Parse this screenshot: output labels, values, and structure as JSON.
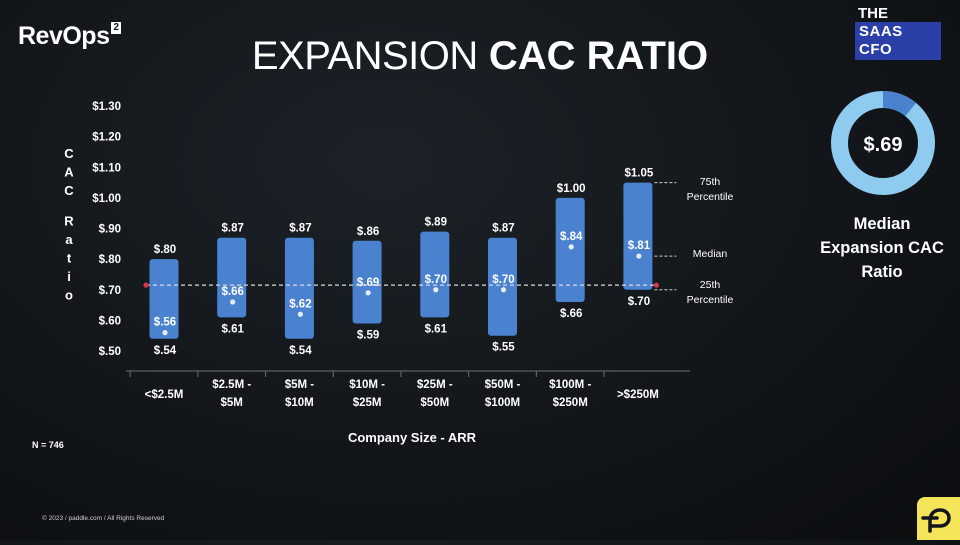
{
  "branding": {
    "revops_text": "RevOps",
    "revops_sup": "2",
    "saas_line1": "THE",
    "saas_line2": "SAAS CFO"
  },
  "title": {
    "word1": "EXPANSION",
    "word2": "CAC RATIO"
  },
  "median_panel": {
    "value": "$.69",
    "caption_lines": [
      "Median",
      "Expansion CAC",
      "Ratio"
    ],
    "ring_fraction": 0.11,
    "ring_color": "#8ecbef",
    "ring_segment_color": "#4a82cf"
  },
  "chart_data": {
    "type": "bar",
    "subtype": "floating-range",
    "title": "",
    "xlabel": "Company Size - ARR",
    "ylabel": "CAC Ratio",
    "ylim": [
      0.5,
      1.3
    ],
    "yticks": [
      0.5,
      0.6,
      0.7,
      0.8,
      0.9,
      1.0,
      1.1,
      1.2,
      1.3
    ],
    "ytick_labels": [
      "$.50",
      "$.60",
      "$.70",
      "$.80",
      "$.90",
      "$1.00",
      "$1.10",
      "$1.20",
      "$1.30"
    ],
    "categories": [
      [
        "<$2.5M"
      ],
      [
        "$2.5M -",
        "$5M"
      ],
      [
        "$5M -",
        "$10M"
      ],
      [
        "$10M -",
        "$25M"
      ],
      [
        "$25M -",
        "$50M"
      ],
      [
        "$50M -",
        "$100M"
      ],
      [
        "$100M -",
        "$250M"
      ],
      [
        ">$250M"
      ]
    ],
    "series": [
      {
        "name": "75th Percentile",
        "values": [
          0.8,
          0.87,
          0.87,
          0.86,
          0.89,
          0.87,
          1.0,
          1.05
        ],
        "labels": [
          "$.80",
          "$.87",
          "$.87",
          "$.86",
          "$.89",
          "$.87",
          "$1.00",
          "$1.05"
        ]
      },
      {
        "name": "Median",
        "values": [
          0.56,
          0.66,
          0.62,
          0.69,
          0.7,
          0.7,
          0.84,
          0.81
        ],
        "labels": [
          "$.56",
          "$.66",
          "$.62",
          "$.69",
          "$.70",
          "$.70",
          "$.84",
          "$.81"
        ]
      },
      {
        "name": "25th Percentile",
        "values": [
          0.54,
          0.61,
          0.54,
          0.59,
          0.61,
          0.55,
          0.66,
          0.7
        ],
        "labels": [
          "$.54",
          "$.61",
          "$.54",
          "$.59",
          "$.61",
          "$.55",
          "$.66",
          "$.70"
        ]
      }
    ],
    "reference_line": {
      "value": 0.715
    },
    "annotations": [
      {
        "lines": [
          "75th",
          "Percentile"
        ]
      },
      {
        "lines": [
          "Median"
        ]
      },
      {
        "lines": [
          "25th",
          "Percentile"
        ]
      }
    ],
    "bar_color": "#4a82cf",
    "grid": false
  },
  "footer": {
    "n_label": "N = 746",
    "copyright": "© 2023 / paddle.com / All Rights Reserved"
  }
}
